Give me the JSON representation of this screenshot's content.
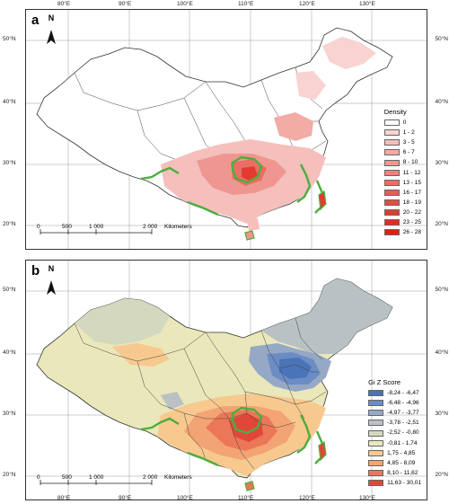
{
  "axes": {
    "lon_labels": [
      "80°E",
      "90°E",
      "100°E",
      "110°E",
      "120°E",
      "130°E"
    ],
    "lat_labels": [
      "50°N",
      "40°N",
      "30°N",
      "20°N"
    ]
  },
  "panel_a": {
    "letter": "a",
    "north_label": "N",
    "legend_title": "Density",
    "legend_items": [
      {
        "label": "0",
        "color": "#ffffff"
      },
      {
        "label": "1 - 2",
        "color": "#f8d3d1"
      },
      {
        "label": "3 - 5",
        "color": "#f5bfbc"
      },
      {
        "label": "6 - 7",
        "color": "#f3aba6"
      },
      {
        "label": "8 - 10",
        "color": "#f09690"
      },
      {
        "label": "11 - 12",
        "color": "#ed827b"
      },
      {
        "label": "13 - 15",
        "color": "#ea6e66"
      },
      {
        "label": "16 - 17",
        "color": "#e85c52"
      },
      {
        "label": "18 - 19",
        "color": "#e64b40"
      },
      {
        "label": "20 - 22",
        "color": "#e33b30"
      },
      {
        "label": "23 - 25",
        "color": "#e02d22"
      },
      {
        "label": "26 - 28",
        "color": "#de1f15"
      }
    ],
    "scale": {
      "ticks": [
        "0",
        "500",
        "1 000",
        "2 000"
      ],
      "unit": "Kilometers"
    }
  },
  "panel_b": {
    "letter": "b",
    "north_label": "N",
    "legend_title": "Gi Z Score",
    "legend_items": [
      {
        "label": "-8,24 - -6,47",
        "color": "#4a73b8"
      },
      {
        "label": "-6,48 - -4,96",
        "color": "#6b8cc4"
      },
      {
        "label": "-4,97 - -3,77",
        "color": "#95a8c6"
      },
      {
        "label": "-3,78 - -2,51",
        "color": "#b9c1c4"
      },
      {
        "label": "-2,52 - -0,80",
        "color": "#d4d8bf"
      },
      {
        "label": "-0,81 - 1,74",
        "color": "#eae7ba"
      },
      {
        "label": "1,75 - 4,85",
        "color": "#f7c98f"
      },
      {
        "label": "4,85 - 8,09",
        "color": "#f3a474"
      },
      {
        "label": "8,10 - 11,62",
        "color": "#ec7758"
      },
      {
        "label": "11,63 - 30,01",
        "color": "#e0473a"
      }
    ],
    "scale": {
      "ticks": [
        "0",
        "500",
        "1 000",
        "2 000"
      ],
      "unit": "Kilometers"
    }
  },
  "colors": {
    "boundary": "#333333",
    "protected_area": "#4cae3c"
  }
}
